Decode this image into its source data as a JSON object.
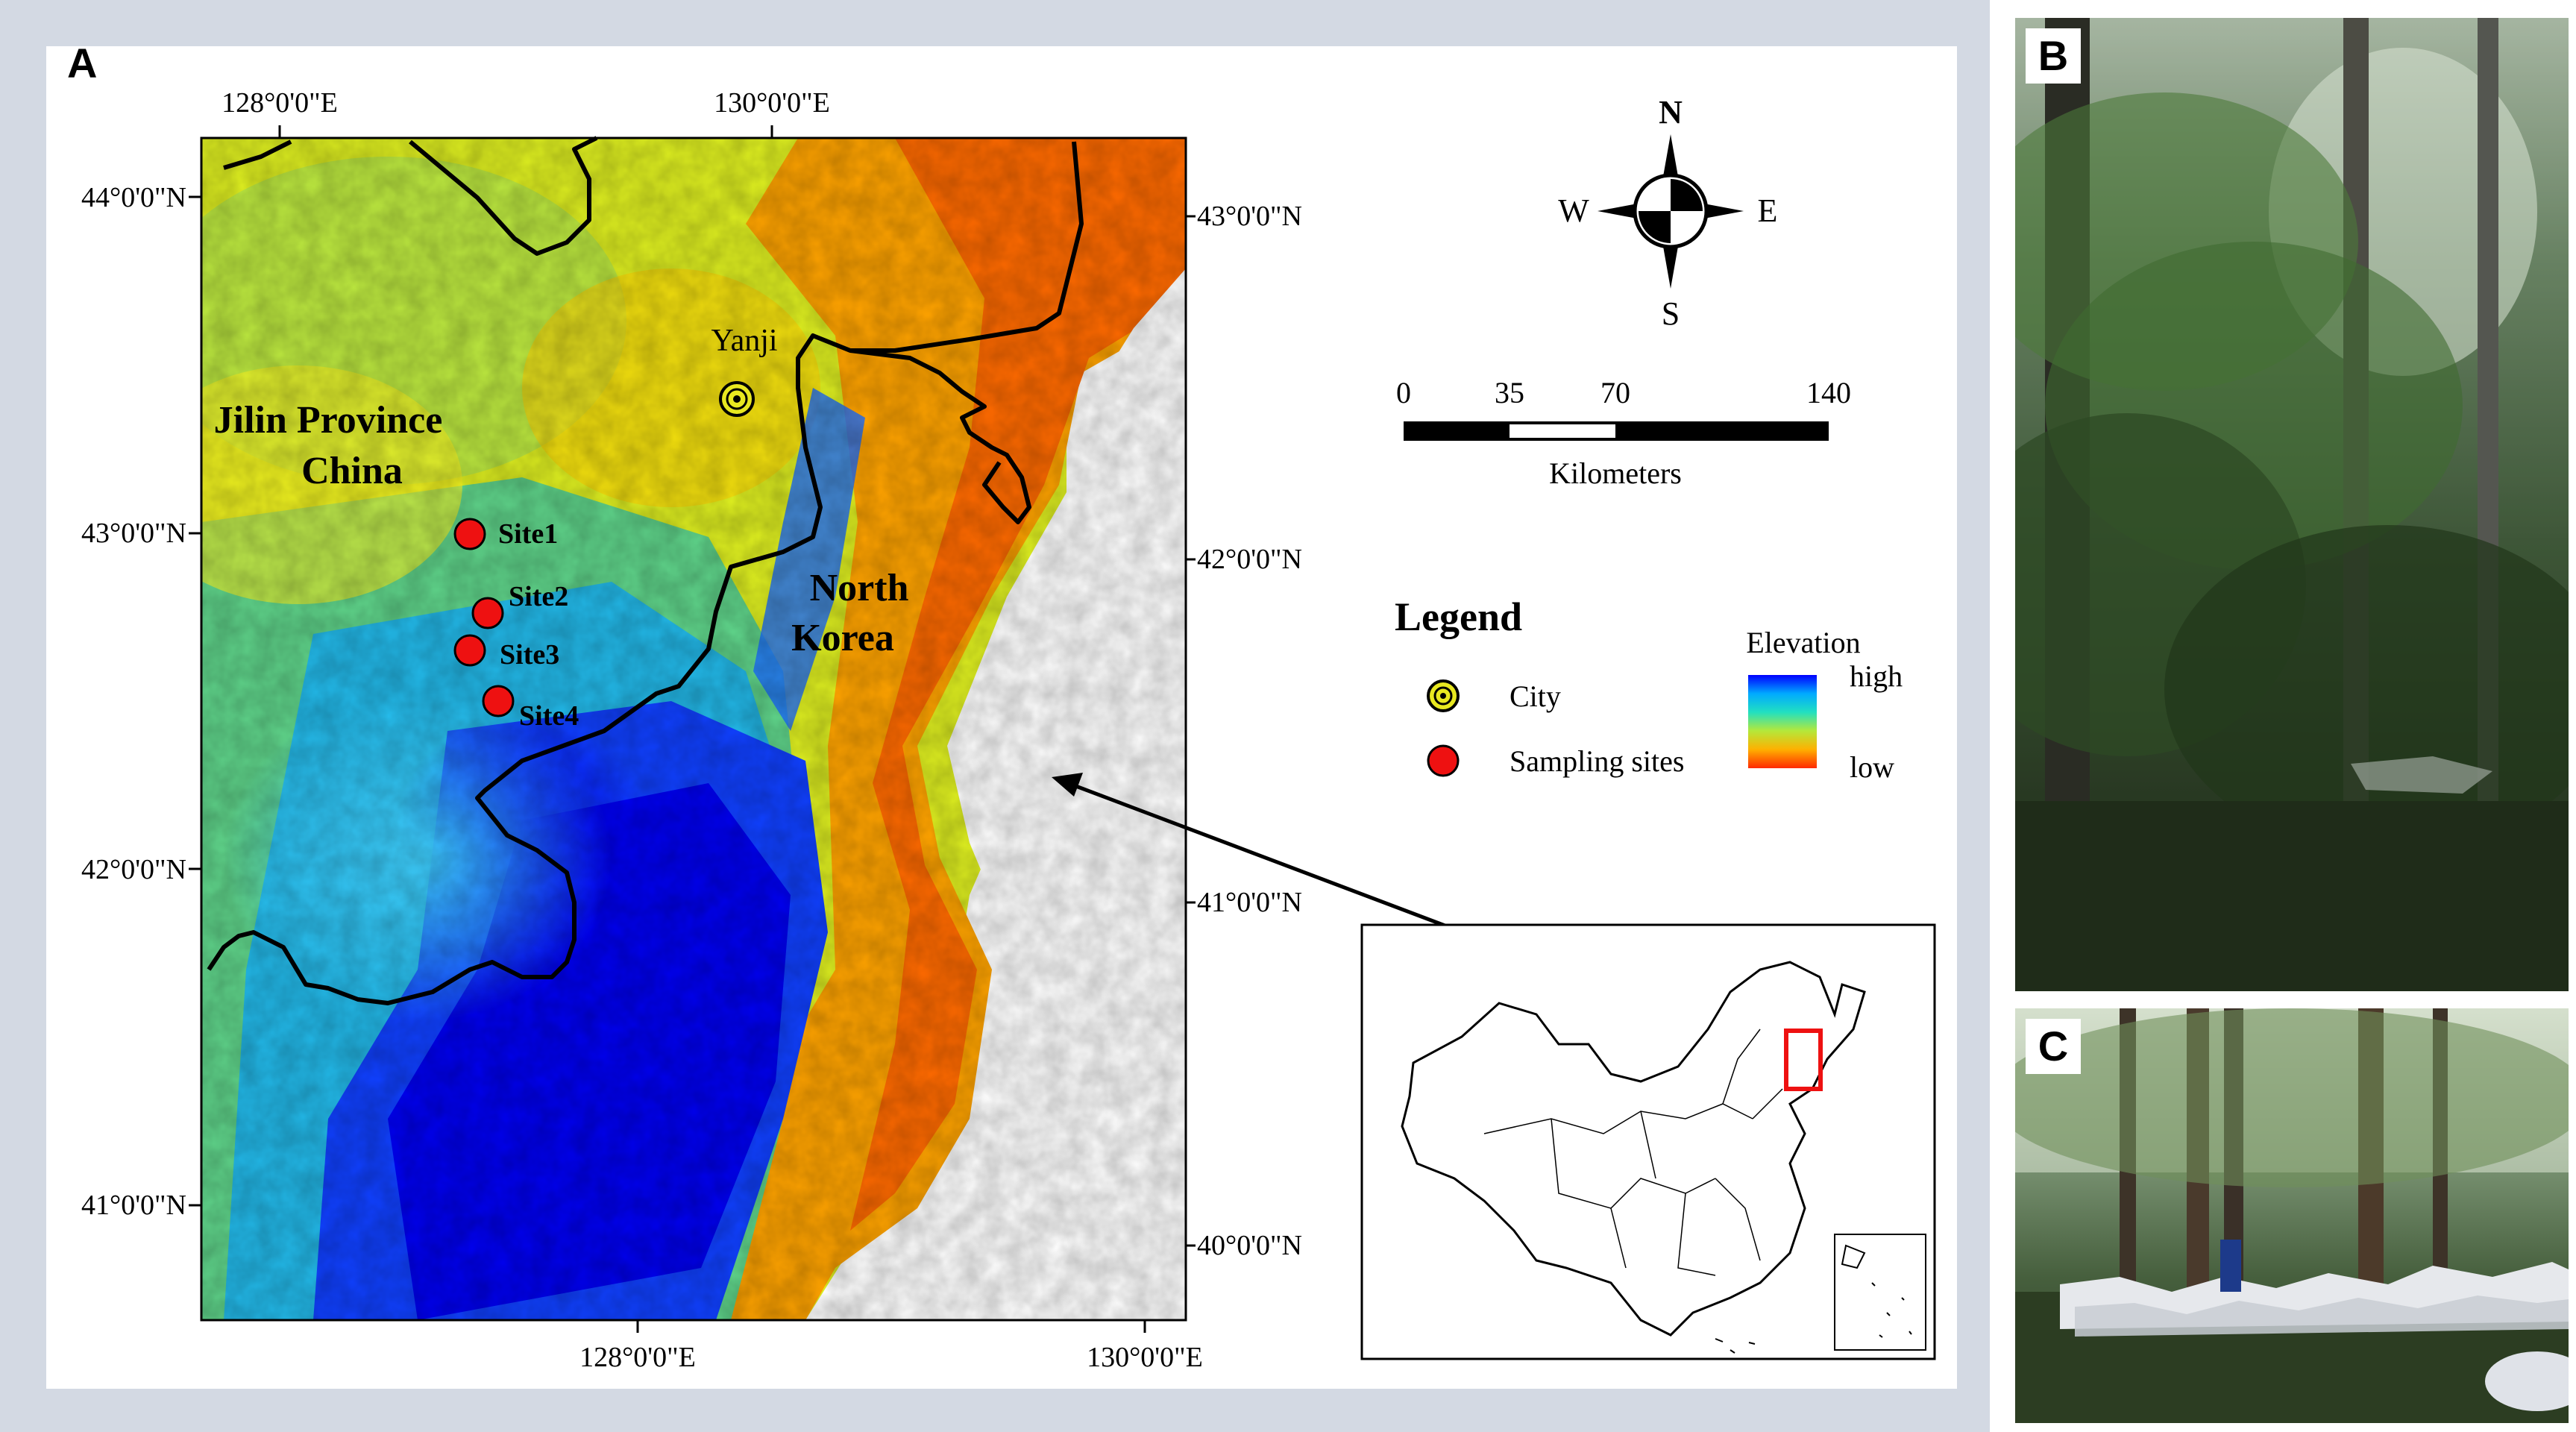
{
  "panels": {
    "a": "A",
    "b": "B",
    "c": "C"
  },
  "map": {
    "top_ticks": [
      "128°0'0\"E",
      "130°0'0\"E"
    ],
    "bottom_ticks": [
      "128°0'0\"E",
      "130°0'0\"E"
    ],
    "left_ticks": [
      "44°0'0\"N",
      "43°0'0\"N",
      "42°0'0\"N",
      "41°0'0\"N"
    ],
    "right_ticks": [
      "43°0'0\"N",
      "42°0'0\"N",
      "41°0'0\"N",
      "40°0'0\"N"
    ],
    "regions": {
      "china_line1": "Jilin Province",
      "china_line2": "China",
      "nk_line1": "North",
      "nk_line2": "Korea"
    },
    "city": "Yanji",
    "sites": [
      "Site1",
      "Site2",
      "Site3",
      "Site4"
    ]
  },
  "compass": {
    "n": "N",
    "s": "S",
    "e": "E",
    "w": "W"
  },
  "scalebar": {
    "labels": [
      "0",
      "35",
      "70",
      "140"
    ],
    "unit": "Kilometers"
  },
  "legend": {
    "title": "Legend",
    "city": "City",
    "sites": "Sampling sites",
    "elevation": "Elevation",
    "high": "high",
    "low": "low",
    "colors": [
      "#0000ff",
      "#00aaff",
      "#22e0c0",
      "#7ed957",
      "#e8f020",
      "#ffb000",
      "#ff5a00"
    ]
  }
}
